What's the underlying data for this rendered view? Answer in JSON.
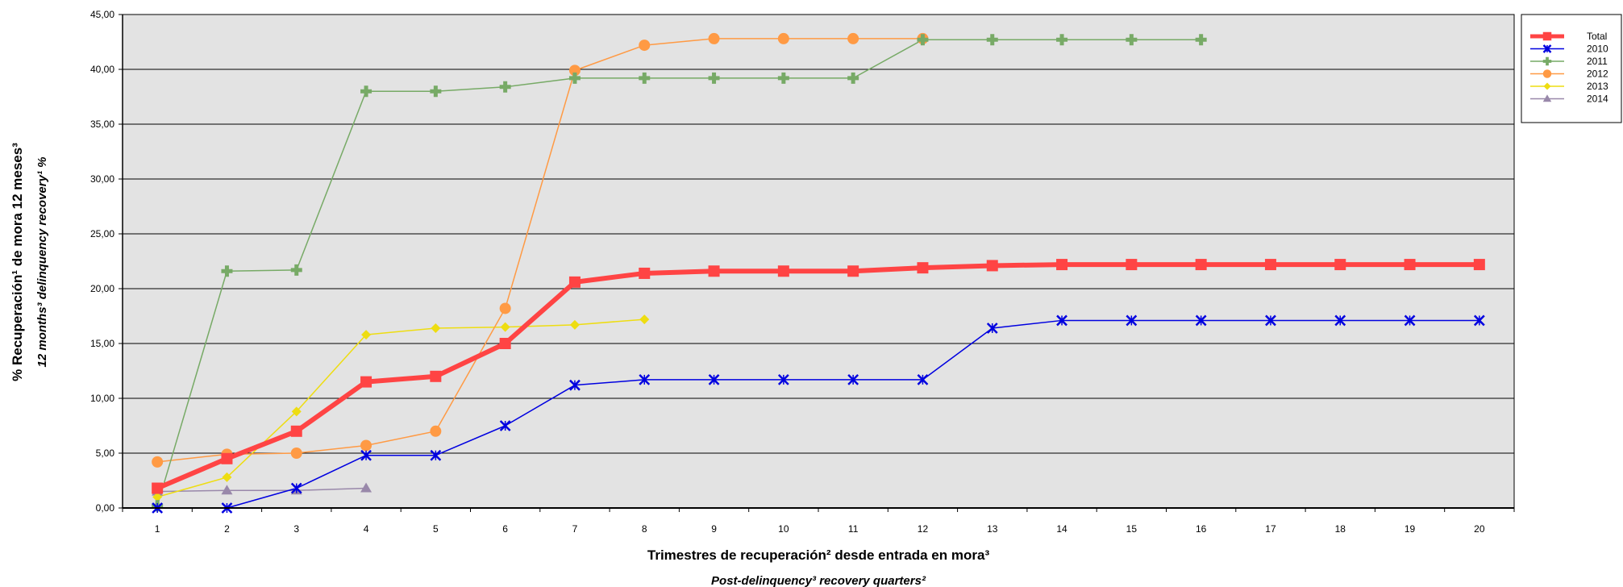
{
  "chart_data": {
    "type": "line",
    "xlabel": "Trimestres de recuperación² desde entrada en mora³",
    "xlabel_en": "Post-delinquency³ recovery quarters²",
    "ylabel": "% Recuperación¹ de mora 12 meses³",
    "ylabel_en": "12 months³ delinquency recovery¹ %",
    "x": [
      1,
      2,
      3,
      4,
      5,
      6,
      7,
      8,
      9,
      10,
      11,
      12,
      13,
      14,
      15,
      16,
      17,
      18,
      19,
      20
    ],
    "x_tick_labels": [
      "1",
      "2",
      "3",
      "4",
      "5",
      "6",
      "7",
      "8",
      "9",
      "10",
      "11",
      "12",
      "13",
      "14",
      "15",
      "16",
      "17",
      "18",
      "19",
      "20"
    ],
    "ylim": [
      0,
      45
    ],
    "y_ticks": [
      0,
      5,
      10,
      15,
      20,
      25,
      30,
      35,
      40,
      45
    ],
    "y_tick_labels": [
      "0,00",
      "5,00",
      "10,00",
      "15,00",
      "20,00",
      "25,00",
      "30,00",
      "35,00",
      "40,00",
      "45,00"
    ],
    "grid": "horizontal",
    "legend_position": "right",
    "plot_background": "#e3e3e3",
    "series": [
      {
        "name": "Total",
        "color": "#ff4444",
        "marker": "square",
        "values": [
          1.8,
          4.5,
          7.0,
          11.5,
          12.0,
          15.0,
          20.6,
          21.4,
          21.6,
          21.6,
          21.6,
          21.9,
          22.1,
          22.2,
          22.2,
          22.2,
          22.2,
          22.2,
          22.2,
          22.2
        ]
      },
      {
        "name": "2010",
        "color": "#0000e0",
        "marker": "x-star",
        "values": [
          0.0,
          0.0,
          1.8,
          4.8,
          4.8,
          7.5,
          11.2,
          11.7,
          11.7,
          11.7,
          11.7,
          11.7,
          16.4,
          17.1,
          17.1,
          17.1,
          17.1,
          17.1,
          17.1,
          17.1
        ]
      },
      {
        "name": "2011",
        "color": "#77aa66",
        "marker": "plus",
        "values": [
          0.2,
          21.6,
          21.7,
          38.0,
          38.0,
          38.4,
          39.2,
          39.2,
          39.2,
          39.2,
          39.2,
          42.7,
          42.7,
          42.7,
          42.7,
          42.7,
          null,
          null,
          null,
          null
        ]
      },
      {
        "name": "2012",
        "color": "#ff9a44",
        "marker": "circle",
        "values": [
          4.2,
          4.9,
          5.0,
          5.7,
          7.0,
          18.2,
          39.9,
          42.2,
          42.8,
          42.8,
          42.8,
          42.8,
          null,
          null,
          null,
          null,
          null,
          null,
          null,
          null
        ]
      },
      {
        "name": "2013",
        "color": "#eedd11",
        "marker": "diamond",
        "values": [
          1.0,
          2.8,
          8.8,
          15.8,
          16.4,
          16.5,
          16.7,
          17.2,
          null,
          null,
          null,
          null,
          null,
          null,
          null,
          null,
          null,
          null,
          null,
          null
        ]
      },
      {
        "name": "2014",
        "color": "#9988aa",
        "marker": "triangle",
        "values": [
          1.5,
          1.6,
          1.6,
          1.8,
          null,
          null,
          null,
          null,
          null,
          null,
          null,
          null,
          null,
          null,
          null,
          null,
          null,
          null,
          null,
          null
        ]
      }
    ]
  }
}
